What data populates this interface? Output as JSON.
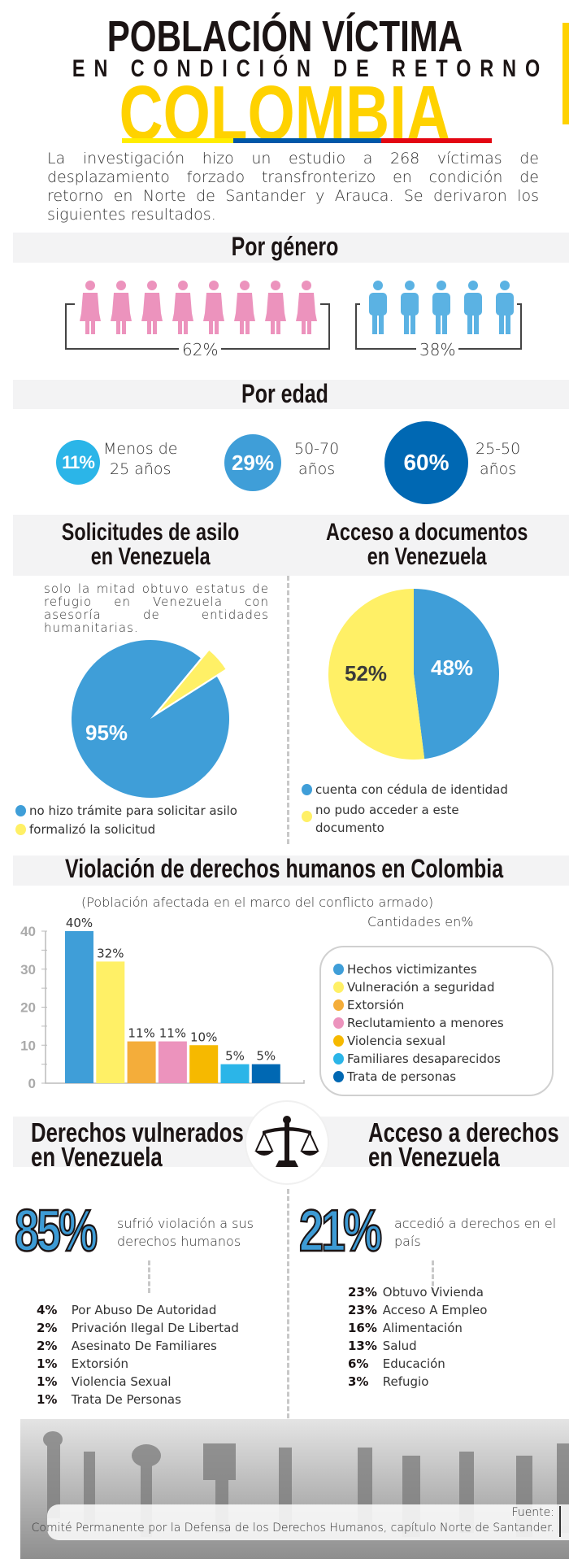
{
  "header": {
    "title_line1": "POBLACIÓN VÍCTIMA",
    "title_line2": "EN CONDICIÓN DE RETORNO A",
    "title_country": "COLOMBIA",
    "flag_colors": [
      "#ffed00",
      "#0057a8",
      "#e30613"
    ],
    "intro": "La investigación hizo un estudio a 268 víctimas de desplazamiento forzado transfronterizo en condición de retorno en Norte de Santander y Arauca.  Se derivaron los siguientes resultados."
  },
  "gender": {
    "title": "Por género",
    "women_pct": "62%",
    "men_pct": "38%",
    "women_icons": 8,
    "men_icons": 5,
    "women_color": "#ec93bd",
    "men_color": "#5bb2e3"
  },
  "age": {
    "title": "Por edad",
    "groups": [
      {
        "pct": "11%",
        "label_line1": "Menos de",
        "label_line2": "25 años",
        "color": "#2bb5e8"
      },
      {
        "pct": "29%",
        "label_line1": "50-70",
        "label_line2": "años",
        "color": "#3f9ed8"
      },
      {
        "pct": "60%",
        "label_line1": "25-50",
        "label_line2": "años",
        "color": "#0068b3"
      }
    ]
  },
  "asylum": {
    "title_line1": "Solicitudes de asilo",
    "title_line2": "en Venezuela",
    "note": "solo la mitad obtuvo estatus de refugio en Venezuela con asesoría de entidades humanitarias.",
    "legend": [
      "no hizo trámite para solicitar asilo",
      "formalizó la solicitud"
    ]
  },
  "documents": {
    "title_line1": "Acceso a documentos",
    "title_line2": "en Venezuela",
    "legend": [
      "cuenta con cédula de identidad",
      "no pudo acceder a este documento"
    ]
  },
  "violations": {
    "title": "Violación de derechos humanos en Colombia",
    "subtitle": "(Población afectada en el marco del conflicto armado)",
    "units": "Cantidades en%"
  },
  "rights_violated": {
    "title_line1": "Derechos vulnerados",
    "title_line2": "en Venezuela",
    "big": "85%",
    "text": "sufrió violación a sus derechos humanos",
    "items": [
      {
        "pct": "4%",
        "label": "Por Abuso De Autoridad"
      },
      {
        "pct": "2%",
        "label": "Privación Ilegal De Libertad"
      },
      {
        "pct": "2%",
        "label": "Asesinato De Familiares"
      },
      {
        "pct": "1%",
        "label": "Extorsión"
      },
      {
        "pct": "1%",
        "label": "Violencia Sexual"
      },
      {
        "pct": "1%",
        "label": "Trata De Personas"
      }
    ]
  },
  "rights_access": {
    "title_line1": "Acceso a derechos",
    "title_line2": "en Venezuela",
    "big": "21%",
    "text": "accedió a derechos en el  país",
    "items": [
      {
        "pct": "23%",
        "label": "Obtuvo Vivienda"
      },
      {
        "pct": "23%",
        "label": "Acceso A Empleo"
      },
      {
        "pct": "16%",
        "label": "Alimentación"
      },
      {
        "pct": "13%",
        "label": "Salud"
      },
      {
        "pct": "6%",
        "label": "Educación"
      },
      {
        "pct": "3%",
        "label": "Refugio"
      }
    ]
  },
  "footer": {
    "source_label": "Fuente:",
    "source": "Comité Permanente por la Defensa de los Derechos Humanos, capítulo Norte de Santander."
  },
  "chart_data": [
    {
      "type": "pie",
      "title": "Solicitudes de asilo en Venezuela",
      "labels": [
        "no hizo trámite para solicitar asilo",
        "formalizó la solicitud"
      ],
      "values": [
        95,
        5
      ],
      "value_labels": [
        "95%",
        ""
      ],
      "colors": [
        "#3f9ed8",
        "#fff066"
      ]
    },
    {
      "type": "pie",
      "title": "Acceso a documentos en Venezuela",
      "labels": [
        "cuenta con cédula de identidad",
        "no pudo acceder a este documento"
      ],
      "values": [
        48,
        52
      ],
      "value_labels": [
        "48%",
        "52%"
      ],
      "colors": [
        "#3f9ed8",
        "#fff066"
      ]
    },
    {
      "type": "bar",
      "title": "Violación de derechos humanos en Colombia",
      "categories": [
        "Hechos victimizantes",
        "Vulneración a seguridad",
        "Extorsión",
        "Reclutamiento a menores",
        "Violencia sexual",
        "Familiares desaparecidos",
        "Trata de personas"
      ],
      "values": [
        40,
        32,
        11,
        11,
        10,
        5,
        5
      ],
      "value_labels": [
        "40%",
        "32%",
        "11%",
        "11%",
        "10%",
        "5%",
        "5%"
      ],
      "colors": [
        "#3f9ed8",
        "#fff066",
        "#f4ad3a",
        "#ec93bd",
        "#f6b900",
        "#2bb5e8",
        "#0068b3"
      ],
      "ylim": [
        0,
        40
      ],
      "yticks": [
        "0",
        "10",
        "20",
        "30",
        "40"
      ],
      "legend": "right"
    }
  ]
}
